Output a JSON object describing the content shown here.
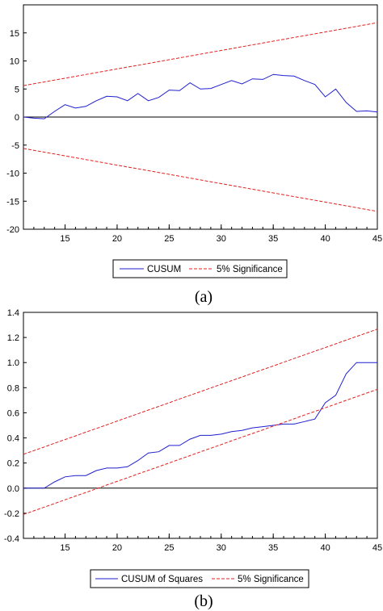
{
  "chart_data": [
    {
      "type": "line",
      "caption": "(a)",
      "xlim": [
        11,
        45
      ],
      "ylim": [
        -20,
        20
      ],
      "xticks": [
        15,
        20,
        25,
        30,
        35,
        40,
        45
      ],
      "yticks": [
        -20,
        -15,
        -10,
        -5,
        0,
        5,
        10,
        15
      ],
      "x": [
        11,
        12,
        13,
        14,
        15,
        16,
        17,
        18,
        19,
        20,
        21,
        22,
        23,
        24,
        25,
        26,
        27,
        28,
        29,
        30,
        31,
        32,
        33,
        34,
        35,
        36,
        37,
        38,
        39,
        40,
        41,
        42,
        43,
        44,
        45
      ],
      "series": [
        {
          "name": "CUSUM",
          "color": "#1f1fd0",
          "dash": false,
          "values": [
            0.0,
            -0.2,
            -0.3,
            1.0,
            2.2,
            1.6,
            1.9,
            2.9,
            3.7,
            3.6,
            2.9,
            4.2,
            2.9,
            3.5,
            4.8,
            4.7,
            6.1,
            5.0,
            5.1,
            5.8,
            6.5,
            5.9,
            6.8,
            6.7,
            7.6,
            7.4,
            7.3,
            6.5,
            5.8,
            3.6,
            5.0,
            2.6,
            1.0,
            1.1,
            0.9
          ]
        },
        {
          "name": "5% Significance",
          "color": "#e02020",
          "dash": true,
          "values": [
            5.6,
            5.93,
            6.26,
            6.59,
            6.92,
            7.25,
            7.58,
            7.91,
            8.24,
            8.57,
            8.9,
            9.23,
            9.56,
            9.89,
            10.22,
            10.55,
            10.88,
            11.21,
            11.54,
            11.87,
            12.2,
            12.53,
            12.86,
            13.19,
            13.52,
            13.85,
            14.18,
            14.51,
            14.84,
            15.17,
            15.5,
            15.83,
            16.16,
            16.49,
            16.82
          ]
        },
        {
          "name": "",
          "color": "#e02020",
          "dash": true,
          "values": [
            -5.6,
            -5.93,
            -6.26,
            -6.59,
            -6.92,
            -7.25,
            -7.58,
            -7.91,
            -8.24,
            -8.57,
            -8.9,
            -9.23,
            -9.56,
            -9.89,
            -10.22,
            -10.55,
            -10.88,
            -11.21,
            -11.54,
            -11.87,
            -12.2,
            -12.53,
            -12.86,
            -13.19,
            -13.52,
            -13.85,
            -14.18,
            -14.51,
            -14.84,
            -15.17,
            -15.5,
            -15.83,
            -16.16,
            -16.49,
            -16.82
          ]
        }
      ],
      "legend": [
        "CUSUM",
        "5% Significance"
      ]
    },
    {
      "type": "line",
      "caption": "(b)",
      "xlim": [
        11,
        45
      ],
      "ylim": [
        -0.4,
        1.4
      ],
      "xticks": [
        15,
        20,
        25,
        30,
        35,
        40,
        45
      ],
      "yticks": [
        -0.4,
        -0.2,
        0.0,
        0.2,
        0.4,
        0.6,
        0.8,
        1.0,
        1.2,
        1.4
      ],
      "ytick_labels": [
        "-0.4",
        "-0.2",
        "0.0",
        "0.2",
        "0.4",
        "0.6",
        "0.8",
        "1.0",
        "1.2",
        "1.4"
      ],
      "x": [
        11,
        12,
        13,
        14,
        15,
        16,
        17,
        18,
        19,
        20,
        21,
        22,
        23,
        24,
        25,
        26,
        27,
        28,
        29,
        30,
        31,
        32,
        33,
        34,
        35,
        36,
        37,
        38,
        39,
        40,
        41,
        42,
        43,
        44,
        45
      ],
      "series": [
        {
          "name": "CUSUM of Squares",
          "color": "#1f1fd0",
          "dash": false,
          "values": [
            0.0,
            0.0,
            0.0,
            0.05,
            0.09,
            0.1,
            0.1,
            0.14,
            0.16,
            0.16,
            0.17,
            0.22,
            0.28,
            0.29,
            0.34,
            0.34,
            0.39,
            0.42,
            0.42,
            0.43,
            0.45,
            0.46,
            0.48,
            0.49,
            0.5,
            0.51,
            0.51,
            0.53,
            0.55,
            0.68,
            0.74,
            0.91,
            1.0,
            1.0,
            1.0
          ]
        },
        {
          "name": "5% Significance",
          "color": "#e02020",
          "dash": true,
          "values": [
            0.27,
            0.299,
            0.328,
            0.358,
            0.387,
            0.416,
            0.446,
            0.475,
            0.504,
            0.534,
            0.563,
            0.592,
            0.622,
            0.651,
            0.68,
            0.71,
            0.739,
            0.768,
            0.798,
            0.827,
            0.856,
            0.885,
            0.915,
            0.944,
            0.973,
            1.003,
            1.032,
            1.061,
            1.091,
            1.12,
            1.149,
            1.179,
            1.208,
            1.237,
            1.267
          ]
        },
        {
          "name": "",
          "color": "#e02020",
          "dash": true,
          "values": [
            -0.21,
            -0.181,
            -0.151,
            -0.122,
            -0.093,
            -0.063,
            -0.034,
            -0.005,
            0.025,
            0.054,
            0.083,
            0.113,
            0.142,
            0.171,
            0.201,
            0.23,
            0.259,
            0.289,
            0.318,
            0.347,
            0.377,
            0.406,
            0.435,
            0.464,
            0.494,
            0.523,
            0.552,
            0.582,
            0.611,
            0.64,
            0.67,
            0.699,
            0.728,
            0.758,
            0.787
          ]
        }
      ],
      "legend": [
        "CUSUM of Squares",
        "5% Significance"
      ]
    }
  ]
}
